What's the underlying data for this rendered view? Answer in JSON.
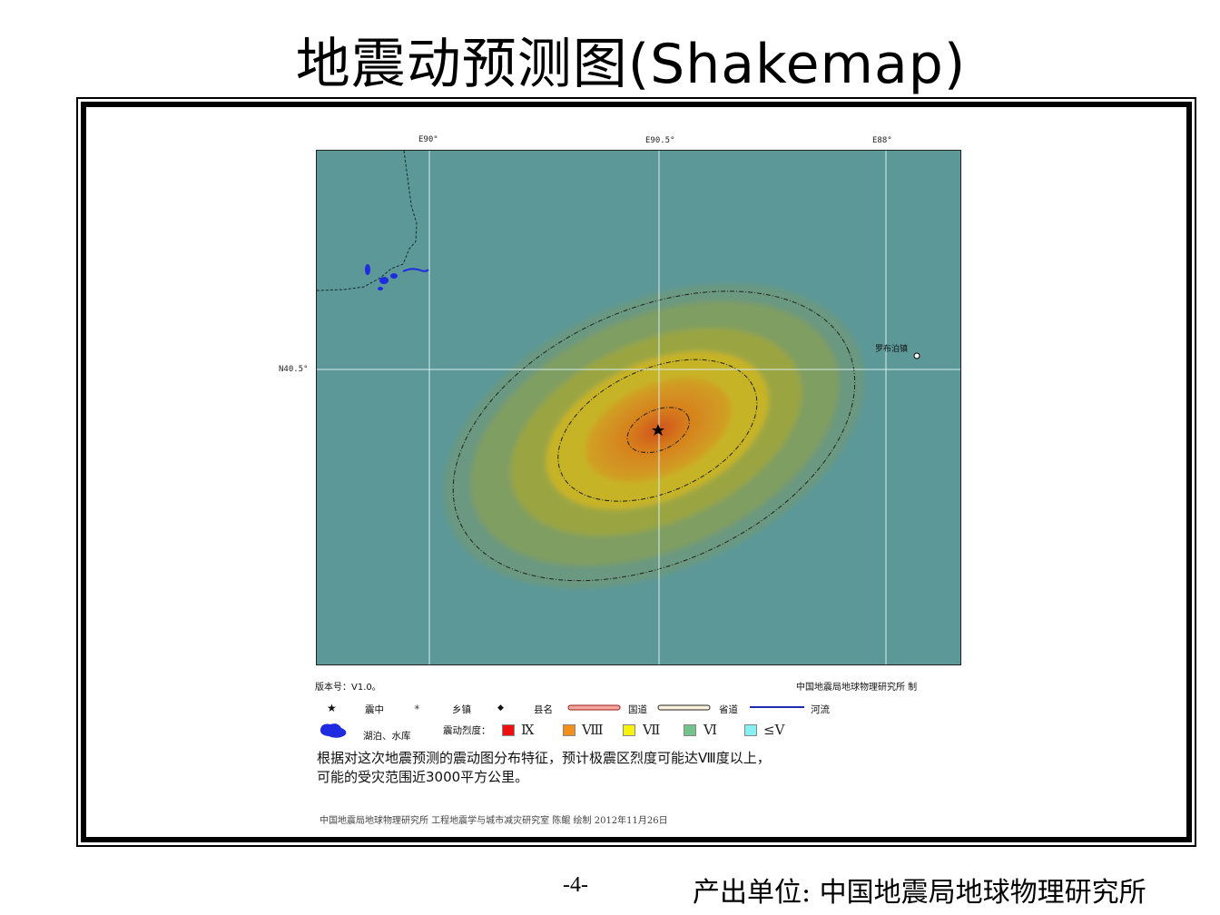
{
  "title": "地震动预测图(Shakemap)",
  "map": {
    "ticks_top": [
      "E90°",
      "E90.5°",
      "E88°"
    ],
    "tick_left": "N40.5°",
    "town_label": "罗布泊镇",
    "colors": {
      "background": "#5c9898",
      "intensity_6": "#7f9e62",
      "intensity_7": "#c7b328",
      "intensity_8": "#d1681e",
      "lake": "#1e2be0"
    },
    "epicenter_icon": "star-icon"
  },
  "version": "版本号：V1.0。",
  "maker": "中国地震局地球物理研究所  制",
  "legend": {
    "row1": [
      {
        "icon": "star-icon",
        "label": "震中"
      },
      {
        "icon": "town-dot-icon",
        "label": "乡镇"
      },
      {
        "icon": "diamond-icon",
        "label": "县名"
      },
      {
        "icon": "national-road-icon",
        "label": "国道"
      },
      {
        "icon": "provincial-road-icon",
        "label": "省道"
      },
      {
        "icon": "river-line-icon",
        "label": "河流"
      }
    ],
    "lake_label": "湖泊、水库",
    "intensity_title": "震动烈度：",
    "intensities": [
      {
        "label": "Ⅸ",
        "color": "#ee1010"
      },
      {
        "label": "Ⅷ",
        "color": "#f39019"
      },
      {
        "label": "Ⅶ",
        "color": "#f7f20c"
      },
      {
        "label": "Ⅵ",
        "color": "#74c38e"
      },
      {
        "label": "≤Ⅴ",
        "color": "#86f1f3"
      }
    ]
  },
  "note_line1": "根据对这次地震预测的震动图分布特征，预计极震区烈度可能达Ⅷ度以上，",
  "note_line2": "可能的受灾范围近3000平方公里。",
  "credit": "中国地震局地球物理研究所 工程地震学与城市减灾研究室 陈鲲 绘制 2012年11月26日",
  "page_number": "-4-",
  "producer": "产出单位: 中国地震局地球物理研究所"
}
